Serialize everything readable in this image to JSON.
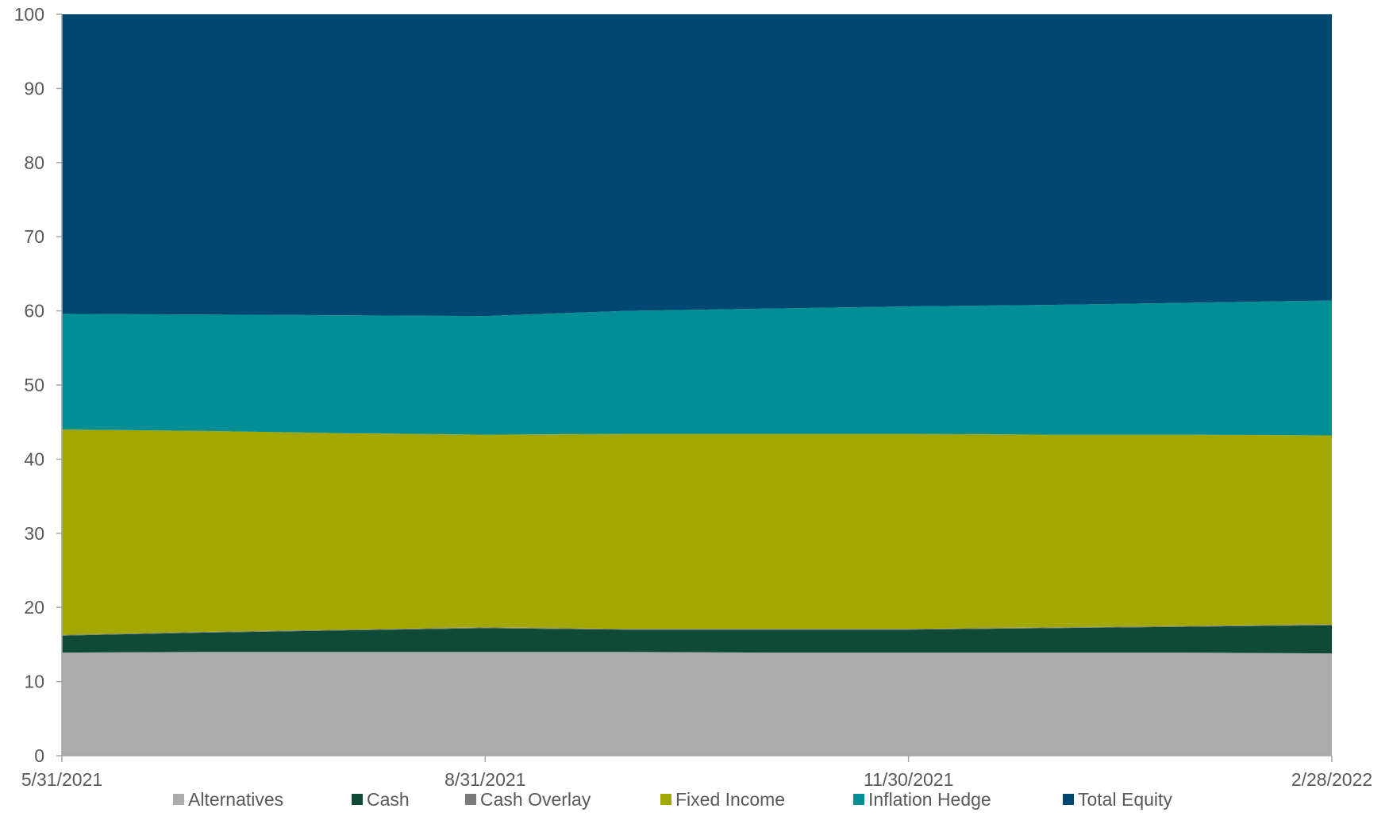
{
  "chart_data": {
    "type": "area",
    "stacked": true,
    "x": [
      "5/31/2021",
      "6/30/2021",
      "7/31/2021",
      "8/31/2021",
      "9/30/2021",
      "10/31/2021",
      "11/30/2021",
      "12/31/2021",
      "1/31/2022",
      "2/28/2022"
    ],
    "x_tick_labels": [
      "5/31/2021",
      "8/31/2021",
      "11/30/2021",
      "2/28/2022"
    ],
    "ylim": [
      0,
      100
    ],
    "y_ticks": [
      0,
      10,
      20,
      30,
      40,
      50,
      60,
      70,
      80,
      90,
      100
    ],
    "grid": false,
    "legend_position": "bottom",
    "series": [
      {
        "name": "Alternatives",
        "color": "#ababab",
        "values": [
          13.9,
          14.0,
          14.0,
          14.0,
          14.0,
          13.9,
          13.9,
          13.9,
          13.9,
          13.8
        ]
      },
      {
        "name": "Cash",
        "color": "#0e4a36",
        "values": [
          2.3,
          2.6,
          2.9,
          3.2,
          3.0,
          3.1,
          3.1,
          3.3,
          3.5,
          3.8
        ]
      },
      {
        "name": "Cash Overlay",
        "color": "#7a7a7a",
        "values": [
          0.1,
          0.1,
          0.1,
          0.1,
          0.1,
          0.1,
          0.1,
          0.1,
          0.1,
          0.1
        ]
      },
      {
        "name": "Fixed Income",
        "color": "#a2a800",
        "values": [
          27.7,
          27.1,
          26.5,
          26.0,
          26.3,
          26.3,
          26.3,
          26.0,
          25.8,
          25.5
        ]
      },
      {
        "name": "Inflation Hedge",
        "color": "#018e95",
        "values": [
          15.6,
          15.7,
          15.9,
          16.0,
          16.6,
          16.9,
          17.2,
          17.5,
          17.8,
          18.2
        ]
      },
      {
        "name": "Total Equity",
        "color": "#004872",
        "values": [
          40.4,
          40.5,
          40.6,
          40.7,
          40.0,
          39.7,
          39.4,
          39.2,
          38.9,
          38.6
        ]
      }
    ]
  }
}
